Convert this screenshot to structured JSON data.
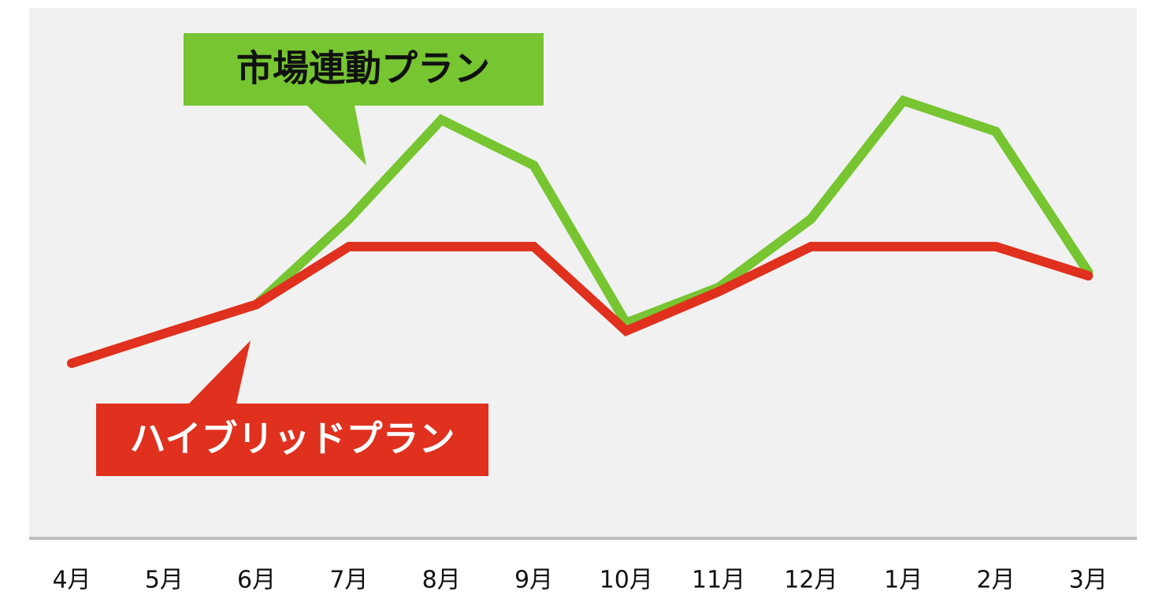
{
  "chart_data": {
    "type": "line",
    "categories": [
      "4月",
      "5月",
      "6月",
      "7月",
      "8月",
      "9月",
      "10月",
      "11月",
      "12月",
      "1月",
      "2月",
      "3月"
    ],
    "series": [
      {
        "name": "市場連動プラン",
        "color": "#76c531",
        "values": [
          null,
          null,
          44.1,
          60.2,
          78.9,
          70.3,
          40.6,
          47.3,
          60.2,
          82.5,
          76.7,
          50.2
        ]
      },
      {
        "name": "ハイブリッドプラン",
        "color": "#e0301e",
        "values": [
          33.0,
          38.6,
          44.1,
          55.0,
          55.0,
          55.0,
          39.1,
          46.5,
          55.0,
          55.0,
          55.0,
          49.5
        ]
      }
    ],
    "ylim": [
      0,
      100
    ]
  }
}
